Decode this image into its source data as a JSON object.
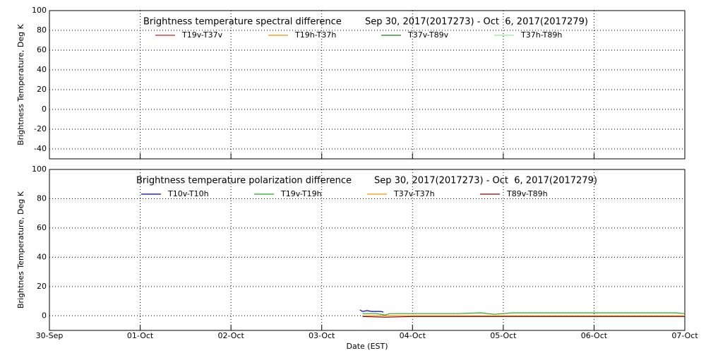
{
  "chart_data": [
    {
      "type": "line",
      "title": "Brightness temperature spectral difference",
      "subtitle": "Sep 30, 2017(2017273) - Oct  6, 2017(2017279)",
      "y_label": "Brightness Temperature, Deg K",
      "xlim": [
        0,
        7
      ],
      "xticks": [
        0,
        1,
        2,
        3,
        4,
        5,
        6,
        7
      ],
      "ylim": [
        -50,
        100
      ],
      "yticks": [
        -40,
        -20,
        0,
        20,
        40,
        60,
        80,
        100
      ],
      "grid": true,
      "series": [
        {
          "name": "T19v-T37v",
          "color": "#cc2222",
          "x": [],
          "values": []
        },
        {
          "name": "T19h-T37h",
          "color": "#ff8c00",
          "x": [],
          "values": []
        },
        {
          "name": "T37v-T89v",
          "color": "#1a7a1a",
          "x": [],
          "values": []
        },
        {
          "name": "T37h-T89h",
          "color": "#90ee90",
          "x": [],
          "values": []
        }
      ]
    },
    {
      "type": "line",
      "title": "Brightness temperature polarization difference",
      "subtitle": "Sep 30, 2017(2017273) - Oct  6, 2017(2017279)",
      "y_label": "Brightnes Temperature, Deg K",
      "x_label": "Date (EST)",
      "xlim": [
        0,
        7
      ],
      "xticks": [
        {
          "value": 0,
          "label": "30-Sep"
        },
        {
          "value": 1,
          "label": "01-Oct"
        },
        {
          "value": 2,
          "label": "02-Oct"
        },
        {
          "value": 3,
          "label": "03-Oct"
        },
        {
          "value": 4,
          "label": "04-Oct"
        },
        {
          "value": 5,
          "label": "05-Oct"
        },
        {
          "value": 6,
          "label": "06-Oct"
        },
        {
          "value": 7,
          "label": "07-Oct"
        }
      ],
      "ylim": [
        -10,
        100
      ],
      "yticks": [
        0,
        20,
        40,
        60,
        80,
        100
      ],
      "grid": true,
      "series": [
        {
          "name": "T10v-T10h",
          "color": "#0000aa",
          "x": [
            3.42,
            3.45,
            3.5,
            3.55,
            3.6,
            3.65,
            3.68
          ],
          "values": [
            4,
            3,
            3.5,
            3,
            3,
            3,
            2.5
          ]
        },
        {
          "name": "T19v-T19h",
          "color": "#22aa22",
          "x": [
            3.45,
            3.6,
            3.7,
            3.75,
            4.0,
            4.25,
            4.5,
            4.75,
            4.9,
            5.0,
            5.1,
            5.5,
            6.0,
            6.5,
            6.9,
            7.0
          ],
          "values": [
            1.5,
            1.5,
            0.5,
            1.5,
            1.5,
            1.5,
            1.5,
            2,
            1,
            1.5,
            2,
            2,
            2,
            2,
            2,
            1.5
          ]
        },
        {
          "name": "T37v-T37h",
          "color": "#ff8c00",
          "x": [
            3.45,
            4.0,
            5.0,
            6.0,
            7.0
          ],
          "values": [
            0,
            0,
            0,
            0,
            0
          ]
        },
        {
          "name": "T89v-T89h",
          "color": "#8b0000",
          "x": [
            3.45,
            3.7,
            4.0,
            4.5,
            5.0,
            5.5,
            6.0,
            6.5,
            7.0
          ],
          "values": [
            -0.5,
            -1,
            -0.5,
            -0.5,
            -0.5,
            -0.5,
            -0.5,
            -0.5,
            -0.5
          ]
        }
      ]
    }
  ]
}
